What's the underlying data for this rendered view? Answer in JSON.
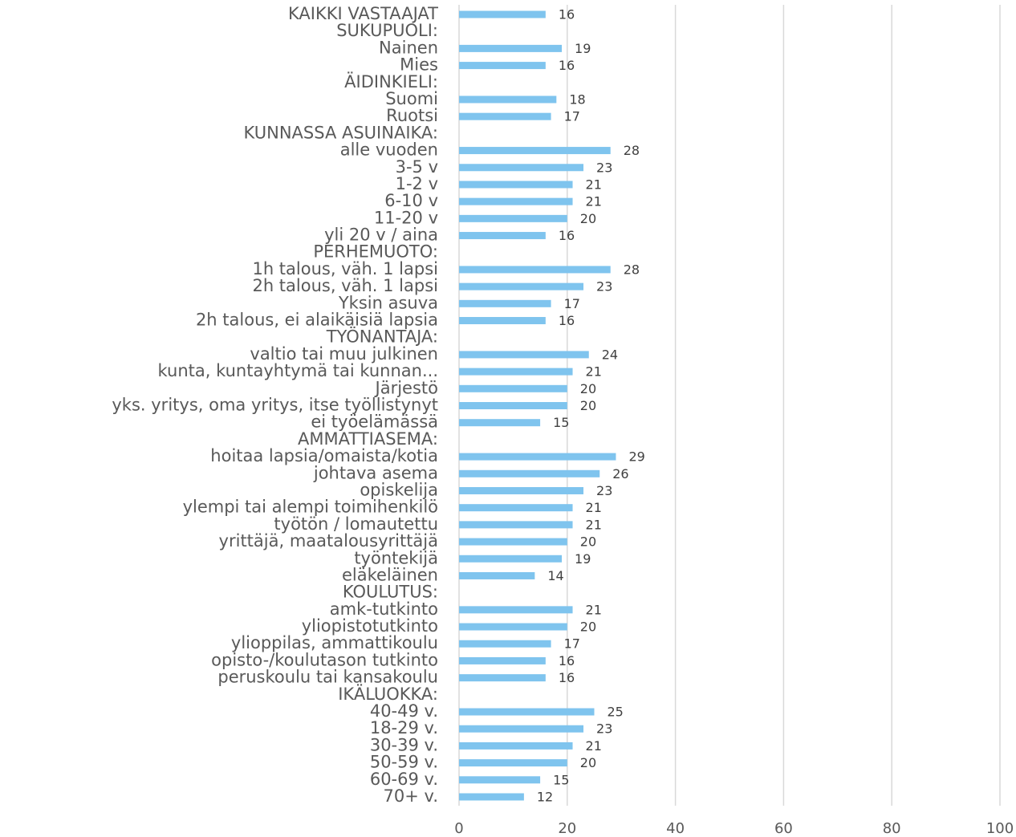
{
  "chart_data": {
    "type": "barh",
    "categories": [
      "KAIKKI VASTAAJAT",
      "SUKUPUOLI:",
      "Nainen",
      "Mies",
      "ÄIDINKIELI:",
      "Suomi",
      "Ruotsi",
      "KUNNASSA ASUINAIKA:",
      "alle vuoden",
      "3-5 v",
      "1-2 v",
      "6-10 v",
      "11-20 v",
      "yli 20 v / aina",
      "PERHEMUOTO:",
      "1h talous, väh. 1 lapsi",
      "2h talous, väh. 1 lapsi",
      "Yksin asuva",
      "2h talous, ei alaikäisiä lapsia",
      "TYÖNANTAJA:",
      "valtio tai muu julkinen",
      "kunta, kuntayhtymä tai kunnan...",
      "Järjestö",
      "yks. yritys, oma yritys, itse työllistynyt",
      "ei työelämässä",
      "AMMATTIASEMA:",
      "hoitaa lapsia/omaista/kotia",
      "johtava asema",
      "opiskelija",
      "ylempi tai alempi toimihenkilö",
      "työtön / lomautettu",
      "yrittäjä, maatalousyrittäjä",
      "työntekijä",
      "eläkeläinen",
      "KOULUTUS:",
      "amk-tutkinto",
      "yliopistotutkinto",
      "ylioppilas, ammattikoulu",
      "opisto-/koulutason tutkinto",
      "peruskoulu tai kansakoulu",
      "IKÄLUOKKA:",
      "40-49 v.",
      "18-29 v.",
      "30-39 v.",
      "50-59 v.",
      "60-69 v.",
      "70+ v."
    ],
    "values": [
      16,
      null,
      19,
      16,
      null,
      18,
      17,
      null,
      28,
      23,
      21,
      21,
      20,
      16,
      null,
      28,
      23,
      17,
      16,
      null,
      24,
      21,
      20,
      20,
      15,
      null,
      29,
      26,
      23,
      21,
      21,
      20,
      19,
      14,
      null,
      21,
      20,
      17,
      16,
      16,
      null,
      25,
      23,
      21,
      20,
      15,
      12
    ],
    "color": "#7fc4ee",
    "xlim": [
      0,
      100
    ],
    "xticks": [
      0,
      20,
      40,
      60,
      80,
      100
    ],
    "grid": true
  }
}
